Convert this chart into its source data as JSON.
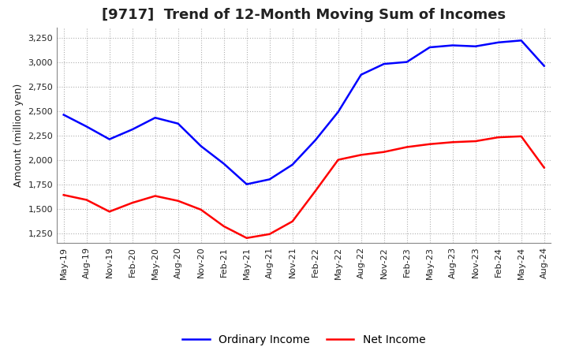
{
  "title": "[9717]  Trend of 12-Month Moving Sum of Incomes",
  "ylabel": "Amount (million yen)",
  "background_color": "#ffffff",
  "grid_color": "#b0b0b0",
  "plot_bg_color": "#ffffff",
  "ordinary_income_color": "#0000ff",
  "net_income_color": "#ff0000",
  "legend_labels": [
    "Ordinary Income",
    "Net Income"
  ],
  "x_labels": [
    "May-19",
    "Aug-19",
    "Nov-19",
    "Feb-20",
    "May-20",
    "Aug-20",
    "Nov-20",
    "Feb-21",
    "May-21",
    "Aug-21",
    "Nov-21",
    "Feb-22",
    "May-22",
    "Aug-22",
    "Nov-22",
    "Feb-23",
    "May-23",
    "Aug-23",
    "Nov-23",
    "Feb-24",
    "May-24",
    "Aug-24"
  ],
  "ordinary_income": [
    2460,
    2340,
    2210,
    2310,
    2430,
    2370,
    2140,
    1960,
    1750,
    1800,
    1950,
    2200,
    2490,
    2870,
    2980,
    3000,
    3150,
    3170,
    3160,
    3200,
    3220,
    2960
  ],
  "net_income": [
    1640,
    1590,
    1470,
    1560,
    1630,
    1580,
    1490,
    1320,
    1200,
    1240,
    1370,
    1680,
    2000,
    2050,
    2080,
    2130,
    2160,
    2180,
    2190,
    2230,
    2240,
    1920
  ],
  "ylim": [
    1150,
    3350
  ],
  "yticks": [
    1250,
    1500,
    1750,
    2000,
    2250,
    2500,
    2750,
    3000,
    3250
  ],
  "title_fontsize": 13,
  "axis_fontsize": 9,
  "tick_fontsize": 8,
  "legend_fontsize": 10,
  "linewidth": 1.8
}
